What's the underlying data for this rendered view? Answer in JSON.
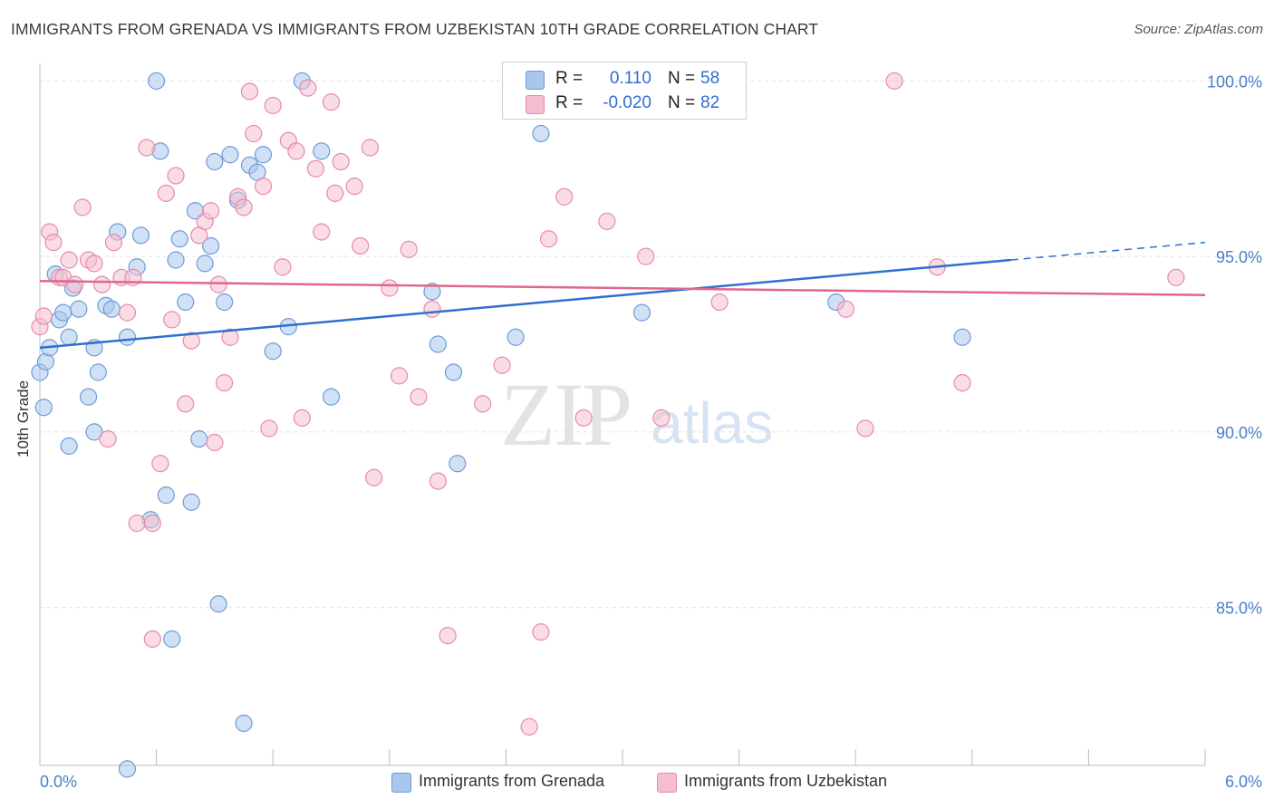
{
  "chart_data": {
    "type": "scatter",
    "title": "IMMIGRANTS FROM GRENADA VS IMMIGRANTS FROM UZBEKISTAN 10TH GRADE CORRELATION CHART",
    "source": "Source: ZipAtlas.com",
    "ylabel": "10th Grade",
    "xlabel": "",
    "xlim": [
      0.0,
      6.0
    ],
    "ylim": [
      80.5,
      100.5
    ],
    "x_tick_labels": [
      "0.0%",
      "6.0%"
    ],
    "y_ticks": [
      100.0,
      95.0,
      90.0,
      85.0
    ],
    "y_tick_labels": [
      "100.0%",
      "95.0%",
      "90.0%",
      "85.0%"
    ],
    "grid": true,
    "watermark": {
      "zip": "ZIP",
      "atlas": "atlas"
    },
    "legend": {
      "rows": [
        {
          "r_label": "R =",
          "r_value": "0.110",
          "n_label": "N =",
          "n_value": "58"
        },
        {
          "r_label": "R =",
          "r_value": "-0.020",
          "n_label": "N =",
          "n_value": "82"
        }
      ]
    },
    "colors": {
      "grenada_fill": "#a9c6ec",
      "grenada_stroke": "#6d9bd8",
      "grenada_line": "#2f6fd0",
      "uzbekistan_fill": "#f5bfd0",
      "uzbekistan_stroke": "#e68aa8",
      "uzbekistan_line": "#e0668e",
      "tick_text": "#4a7fc8"
    },
    "series": [
      {
        "name": "Immigrants from Grenada",
        "trend": {
          "x": [
            0.0,
            5.0
          ],
          "y": [
            92.4,
            94.9
          ],
          "dashed_to": [
            6.0,
            95.4
          ]
        },
        "points": [
          [
            0.0,
            91.7
          ],
          [
            0.03,
            92.0
          ],
          [
            0.05,
            92.4
          ],
          [
            0.08,
            94.5
          ],
          [
            0.1,
            93.2
          ],
          [
            0.12,
            93.4
          ],
          [
            0.15,
            92.7
          ],
          [
            0.17,
            94.1
          ],
          [
            0.2,
            93.5
          ],
          [
            0.25,
            91.0
          ],
          [
            0.28,
            92.4
          ],
          [
            0.3,
            91.7
          ],
          [
            0.34,
            93.6
          ],
          [
            0.37,
            93.5
          ],
          [
            0.4,
            95.7
          ],
          [
            0.45,
            92.7
          ],
          [
            0.5,
            94.7
          ],
          [
            0.52,
            95.6
          ],
          [
            0.57,
            87.5
          ],
          [
            0.6,
            100.0
          ],
          [
            0.62,
            98.0
          ],
          [
            0.65,
            88.2
          ],
          [
            0.68,
            84.1
          ],
          [
            0.7,
            94.9
          ],
          [
            0.72,
            95.5
          ],
          [
            0.75,
            93.7
          ],
          [
            0.78,
            88.0
          ],
          [
            0.8,
            96.3
          ],
          [
            0.82,
            89.8
          ],
          [
            0.85,
            94.8
          ],
          [
            0.88,
            95.3
          ],
          [
            0.9,
            97.7
          ],
          [
            0.92,
            85.1
          ],
          [
            0.95,
            93.7
          ],
          [
            0.98,
            97.9
          ],
          [
            1.02,
            96.6
          ],
          [
            1.05,
            81.7
          ],
          [
            1.08,
            97.6
          ],
          [
            1.12,
            97.4
          ],
          [
            1.15,
            97.9
          ],
          [
            1.2,
            92.3
          ],
          [
            1.28,
            93.0
          ],
          [
            1.35,
            100.0
          ],
          [
            1.45,
            98.0
          ],
          [
            1.5,
            91.0
          ],
          [
            0.15,
            89.6
          ],
          [
            0.02,
            90.7
          ],
          [
            0.28,
            90.0
          ],
          [
            0.45,
            80.4
          ],
          [
            2.02,
            94.0
          ],
          [
            2.05,
            92.5
          ],
          [
            2.13,
            91.7
          ],
          [
            2.15,
            89.1
          ],
          [
            2.45,
            92.7
          ],
          [
            2.58,
            98.5
          ],
          [
            3.1,
            93.4
          ],
          [
            4.1,
            93.7
          ],
          [
            4.75,
            92.7
          ]
        ]
      },
      {
        "name": "Immigrants from Uzbekistan",
        "trend": {
          "x": [
            0.0,
            6.0
          ],
          "y": [
            94.3,
            93.9
          ]
        },
        "points": [
          [
            0.0,
            93.0
          ],
          [
            0.02,
            93.3
          ],
          [
            0.05,
            95.7
          ],
          [
            0.07,
            95.4
          ],
          [
            0.1,
            94.4
          ],
          [
            0.12,
            94.4
          ],
          [
            0.15,
            94.9
          ],
          [
            0.18,
            94.2
          ],
          [
            0.22,
            96.4
          ],
          [
            0.25,
            94.9
          ],
          [
            0.28,
            94.8
          ],
          [
            0.32,
            94.2
          ],
          [
            0.35,
            89.8
          ],
          [
            0.38,
            95.4
          ],
          [
            0.42,
            94.4
          ],
          [
            0.45,
            93.4
          ],
          [
            0.48,
            94.4
          ],
          [
            0.5,
            87.4
          ],
          [
            0.55,
            98.1
          ],
          [
            0.58,
            84.1
          ],
          [
            0.62,
            89.1
          ],
          [
            0.65,
            96.8
          ],
          [
            0.68,
            93.2
          ],
          [
            0.7,
            97.3
          ],
          [
            0.75,
            90.8
          ],
          [
            0.78,
            92.6
          ],
          [
            0.82,
            95.6
          ],
          [
            0.85,
            96.0
          ],
          [
            0.88,
            96.3
          ],
          [
            0.9,
            89.7
          ],
          [
            0.92,
            94.2
          ],
          [
            0.95,
            91.4
          ],
          [
            0.98,
            92.7
          ],
          [
            1.02,
            96.7
          ],
          [
            1.05,
            96.4
          ],
          [
            1.08,
            99.7
          ],
          [
            1.1,
            98.5
          ],
          [
            1.15,
            97.0
          ],
          [
            1.18,
            90.1
          ],
          [
            1.2,
            99.3
          ],
          [
            1.25,
            94.7
          ],
          [
            1.28,
            98.3
          ],
          [
            1.32,
            98.0
          ],
          [
            1.35,
            90.4
          ],
          [
            1.38,
            99.8
          ],
          [
            1.42,
            97.5
          ],
          [
            1.45,
            95.7
          ],
          [
            1.5,
            99.4
          ],
          [
            1.52,
            96.8
          ],
          [
            1.55,
            97.7
          ],
          [
            1.62,
            97.0
          ],
          [
            1.65,
            95.3
          ],
          [
            1.7,
            98.1
          ],
          [
            1.72,
            88.7
          ],
          [
            1.8,
            94.1
          ],
          [
            1.85,
            91.6
          ],
          [
            1.9,
            95.2
          ],
          [
            1.95,
            91.0
          ],
          [
            2.02,
            93.5
          ],
          [
            2.05,
            88.6
          ],
          [
            2.1,
            84.2
          ],
          [
            2.28,
            90.8
          ],
          [
            2.38,
            91.9
          ],
          [
            2.48,
            99.5
          ],
          [
            2.52,
            81.6
          ],
          [
            2.58,
            84.3
          ],
          [
            2.62,
            95.5
          ],
          [
            2.7,
            96.7
          ],
          [
            2.8,
            99.6
          ],
          [
            2.92,
            96.0
          ],
          [
            3.3,
            100.0
          ],
          [
            3.12,
            95.0
          ],
          [
            3.5,
            93.7
          ],
          [
            4.15,
            93.5
          ],
          [
            4.25,
            90.1
          ],
          [
            4.4,
            100.0
          ],
          [
            4.62,
            94.7
          ],
          [
            4.75,
            91.4
          ],
          [
            5.85,
            94.4
          ],
          [
            2.8,
            90.4
          ],
          [
            3.2,
            90.4
          ],
          [
            0.58,
            87.4
          ]
        ]
      }
    ]
  }
}
